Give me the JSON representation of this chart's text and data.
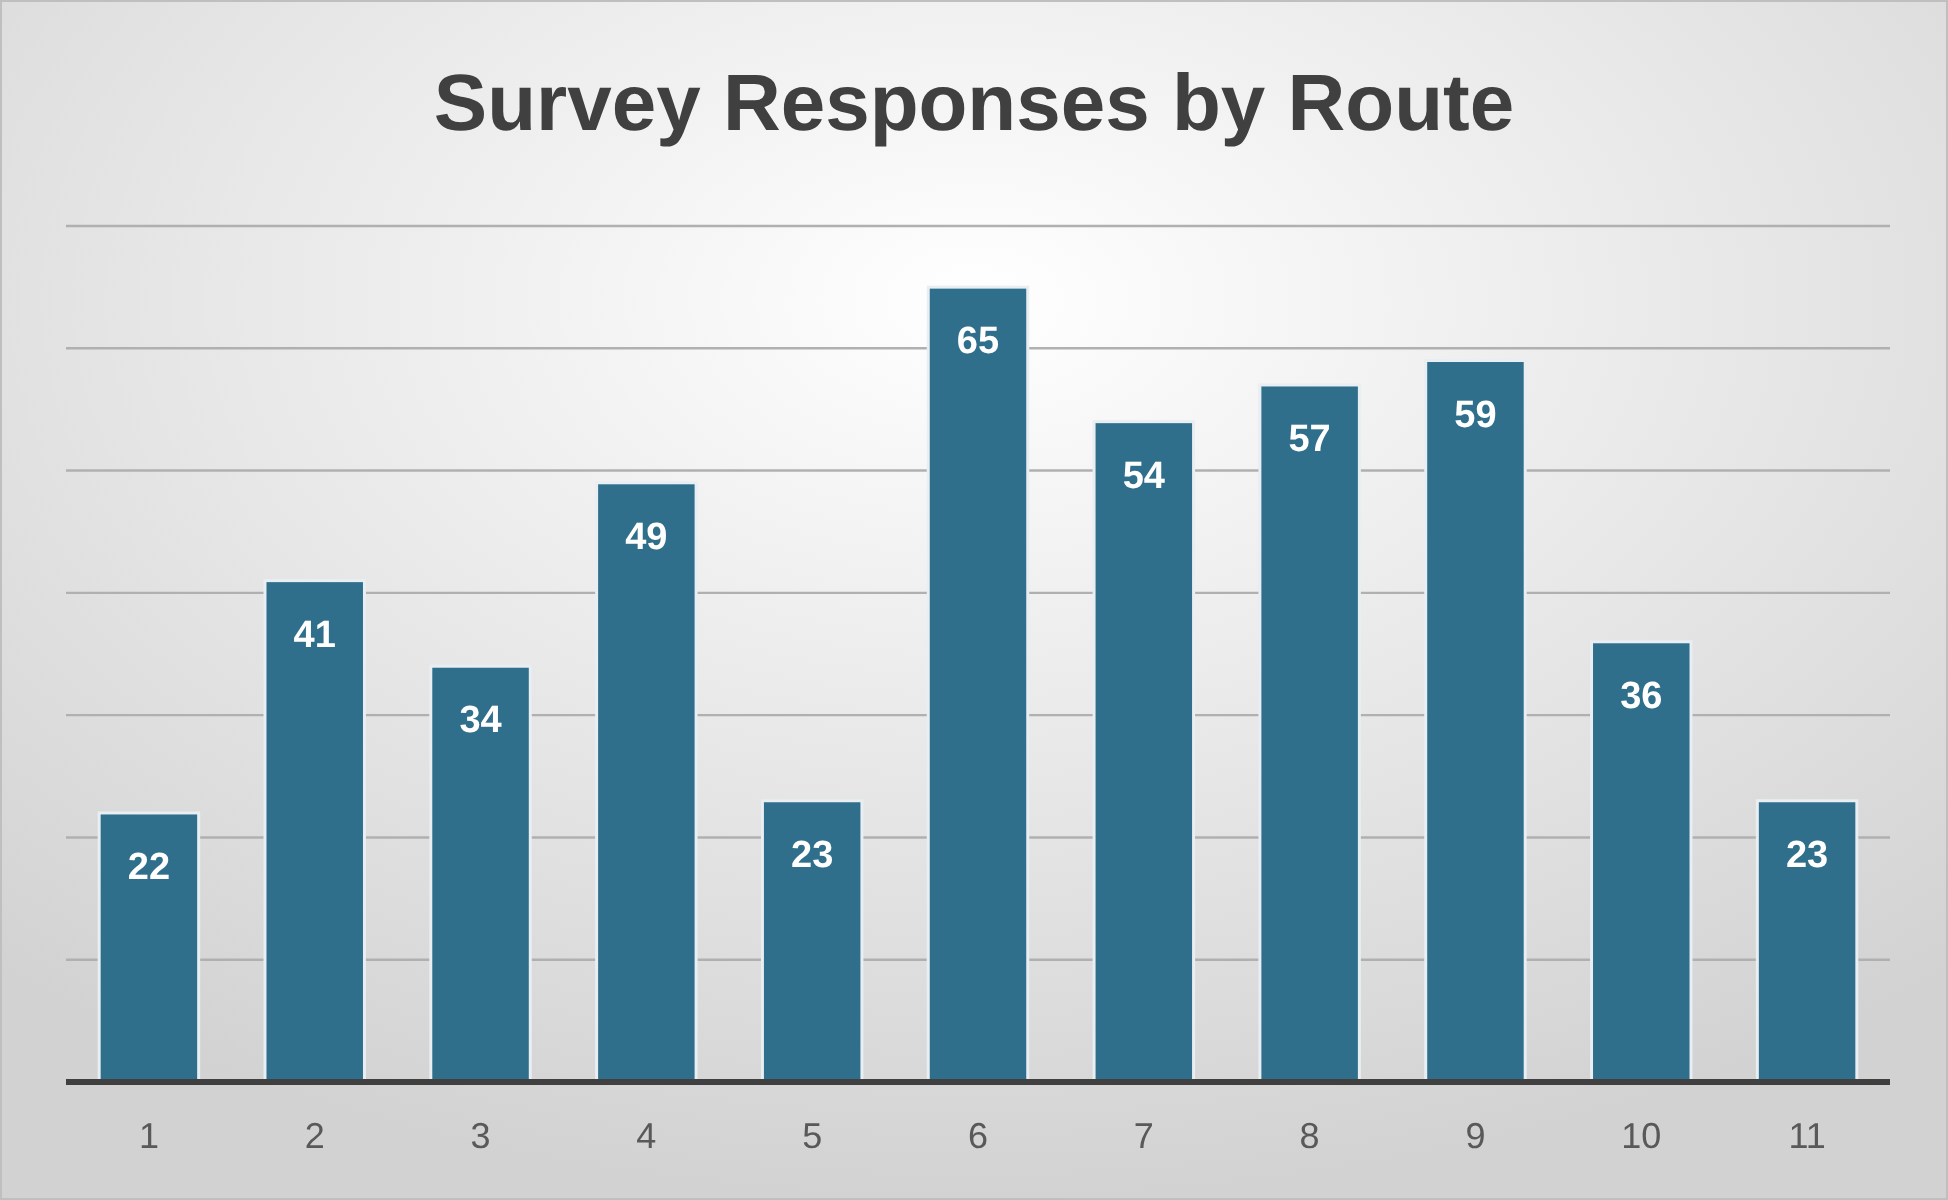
{
  "chart_data": {
    "type": "bar",
    "title": "Survey Responses by Route",
    "categories": [
      "1",
      "2",
      "3",
      "4",
      "5",
      "6",
      "7",
      "8",
      "9",
      "10",
      "11"
    ],
    "values": [
      22,
      41,
      34,
      49,
      23,
      65,
      54,
      57,
      59,
      36,
      23
    ],
    "color": "#306f8c",
    "ylim": [
      0,
      70
    ],
    "yticks": [
      {
        "value": 0,
        "label": null
      },
      {
        "value": 10,
        "label": null
      },
      {
        "value": 20,
        "label": null
      },
      {
        "value": 30,
        "label": null
      },
      {
        "value": 40,
        "label": null
      },
      {
        "value": 50,
        "label": null
      },
      {
        "value": 60,
        "label": null
      },
      {
        "value": 70,
        "label": null
      }
    ],
    "grid": "y",
    "tick_labels": "x",
    "data_labels": true
  }
}
